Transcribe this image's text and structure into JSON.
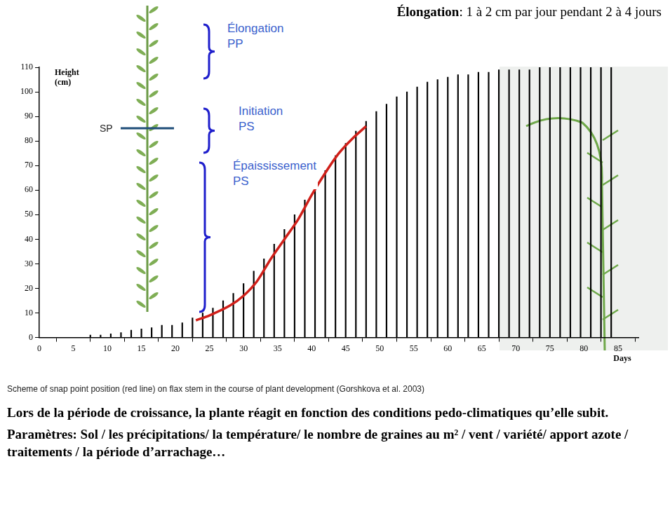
{
  "chart_data": {
    "type": "bar",
    "title": "Élongation: 1 à 2 cm par jour pendant 2 à 4 jours",
    "x_label": "Days",
    "y_label": "Height (cm)",
    "series": [
      {
        "type": "bar",
        "color": "#000000",
        "x": [
          7.5,
          9,
          10.5,
          12,
          13.5,
          15,
          16.5,
          18,
          19.5,
          21,
          22.5,
          24,
          25.5,
          27,
          28.5,
          30,
          31.5,
          33,
          34.5,
          36,
          37.5,
          39,
          40.5,
          42,
          43.5,
          45,
          46.5,
          48,
          49.5,
          51,
          52.5,
          54,
          55.5,
          57,
          58.5,
          60,
          61.5,
          63,
          64.5,
          66,
          67.5,
          69,
          70.5,
          72,
          73.5,
          75,
          76.5,
          78,
          79.5,
          81,
          82.5,
          84
        ],
        "values": [
          1,
          1,
          1.5,
          2,
          3,
          3.5,
          4,
          5,
          5,
          6,
          8,
          10,
          12,
          15,
          18,
          22,
          27,
          32,
          38,
          44,
          50,
          56,
          62,
          68,
          74,
          79,
          84,
          88,
          92,
          95,
          98,
          100,
          102,
          104,
          105,
          106,
          107,
          107,
          108,
          108,
          109,
          109,
          109,
          109,
          110,
          110,
          110,
          110,
          110,
          110,
          110,
          110
        ]
      },
      {
        "type": "line",
        "color": "#d0201a",
        "x": [
          23,
          25,
          28,
          30,
          32,
          34,
          36,
          38,
          40,
          42,
          44,
          46,
          48
        ],
        "values": [
          7,
          9,
          13,
          17,
          23,
          32,
          40,
          48,
          58,
          67,
          75,
          81,
          86
        ]
      }
    ],
    "xlim": [
      0,
      88
    ],
    "xticks": [
      0,
      5,
      10,
      15,
      20,
      25,
      30,
      35,
      40,
      45,
      50,
      55,
      60,
      65,
      70,
      75,
      80,
      85
    ],
    "ylim": [
      0,
      110
    ],
    "yticks": [
      0,
      10,
      20,
      30,
      40,
      50,
      60,
      70,
      80,
      90,
      100,
      110
    ],
    "grid": false,
    "annotations": [
      "Élongation\nPP",
      "Initiation\nPS",
      "Épaississement\nPS",
      "SP"
    ],
    "caption": "Scheme of snap point position (red line) on flax stem in the course of plant development (Gorshkova et al. 2003)",
    "footer": [
      "Lors de la période de croissance, la plante réagit en fonction des conditions pedo-climatiques qu’elle subit.",
      "Paramètres: Sol / les précipitations/ la température/ le nombre de graines au m² / vent / variété/ apport azote / traitements / la période d’arrachage…"
    ]
  }
}
